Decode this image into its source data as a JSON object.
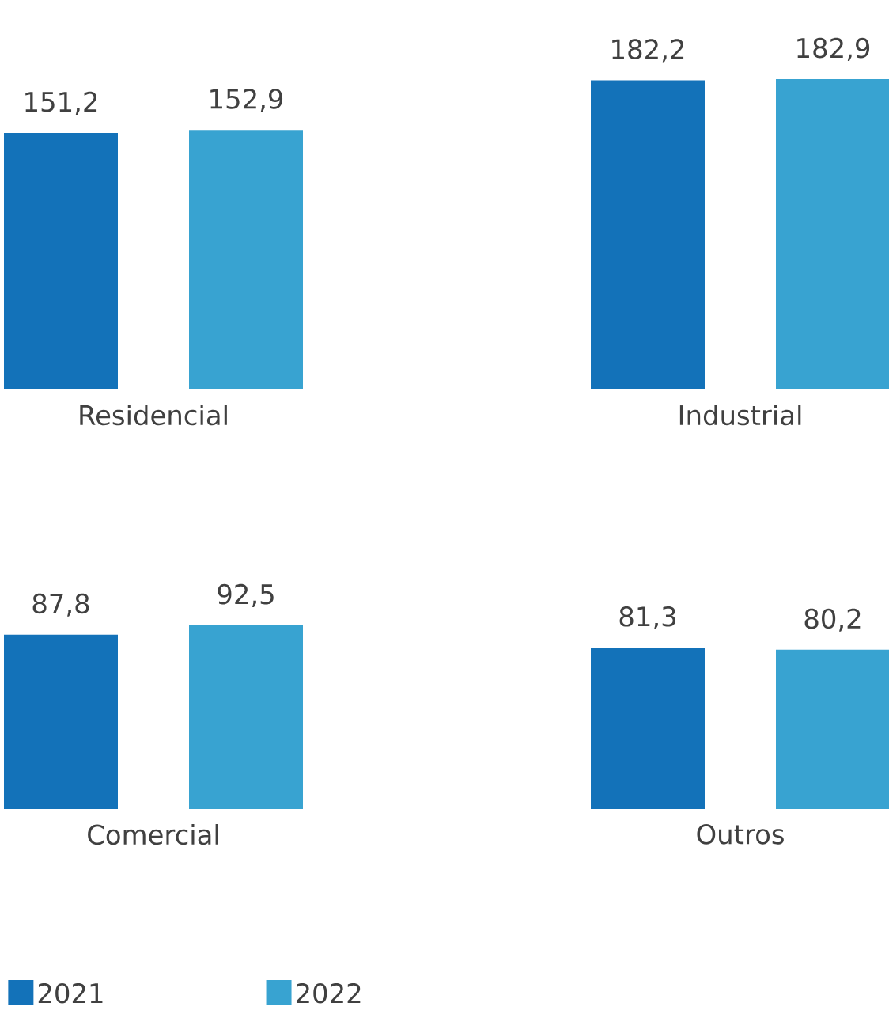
{
  "chart_data": [
    {
      "type": "bar",
      "categories": [
        "Residencial",
        "Industrial"
      ],
      "series": [
        {
          "color": "#1372b9",
          "values": [
            151.2,
            182.2
          ],
          "value_labels": [
            "151,2",
            "182,2"
          ]
        },
        {
          "color": "#38a3d1",
          "values": [
            152.9,
            182.9
          ],
          "value_labels": [
            "152,9",
            "182,9"
          ]
        }
      ]
    },
    {
      "type": "bar",
      "categories": [
        "Comercial",
        "Outros"
      ],
      "legend": "bottom",
      "series": [
        {
          "name": "2021",
          "color": "#1372b9",
          "values": [
            87.8,
            81.3
          ],
          "value_labels": [
            "87,8",
            "81,3"
          ]
        },
        {
          "name": "2022",
          "color": "#38a3d1",
          "values": [
            92.5,
            80.2
          ],
          "value_labels": [
            "92,5",
            "80,2"
          ]
        }
      ]
    }
  ]
}
